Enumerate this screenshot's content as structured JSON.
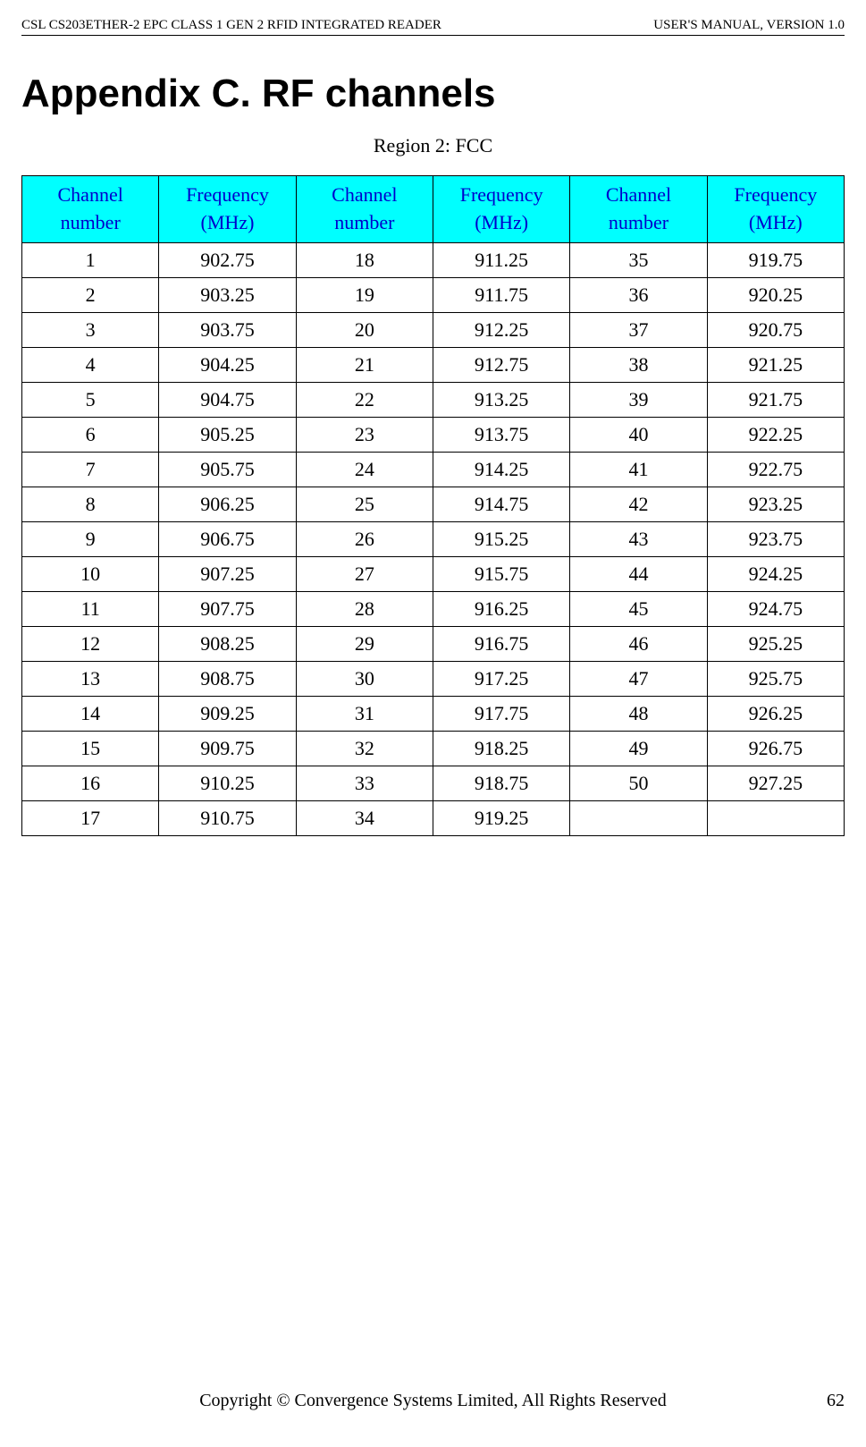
{
  "header": {
    "left": "CSL CS203ETHER-2 EPC CLASS 1 GEN 2 RFID INTEGRATED READER",
    "right": "USER'S  MANUAL,  VERSION  1.0"
  },
  "appendix_title": "Appendix C. RF channels",
  "region_caption": "Region 2: FCC",
  "table": {
    "header_bg_color": "#00ffff",
    "header_text_color": "#0000cc",
    "border_color": "#000000",
    "cell_fontsize": 22,
    "columns": [
      "Channel number",
      "Frequency (MHz)",
      "Channel number",
      "Frequency (MHz)",
      "Channel number",
      "Frequency (MHz)"
    ],
    "rows": [
      [
        "1",
        "902.75",
        "18",
        "911.25",
        "35",
        "919.75"
      ],
      [
        "2",
        "903.25",
        "19",
        "911.75",
        "36",
        "920.25"
      ],
      [
        "3",
        "903.75",
        "20",
        "912.25",
        "37",
        "920.75"
      ],
      [
        "4",
        "904.25",
        "21",
        "912.75",
        "38",
        "921.25"
      ],
      [
        "5",
        "904.75",
        "22",
        "913.25",
        "39",
        "921.75"
      ],
      [
        "6",
        "905.25",
        "23",
        "913.75",
        "40",
        "922.25"
      ],
      [
        "7",
        "905.75",
        "24",
        "914.25",
        "41",
        "922.75"
      ],
      [
        "8",
        "906.25",
        "25",
        "914.75",
        "42",
        "923.25"
      ],
      [
        "9",
        "906.75",
        "26",
        "915.25",
        "43",
        "923.75"
      ],
      [
        "10",
        "907.25",
        "27",
        "915.75",
        "44",
        "924.25"
      ],
      [
        "11",
        "907.75",
        "28",
        "916.25",
        "45",
        "924.75"
      ],
      [
        "12",
        "908.25",
        "29",
        "916.75",
        "46",
        "925.25"
      ],
      [
        "13",
        "908.75",
        "30",
        "917.25",
        "47",
        "925.75"
      ],
      [
        "14",
        "909.25",
        "31",
        "917.75",
        "48",
        "926.25"
      ],
      [
        "15",
        "909.75",
        "32",
        "918.25",
        "49",
        "926.75"
      ],
      [
        "16",
        "910.25",
        "33",
        "918.75",
        "50",
        "927.25"
      ],
      [
        "17",
        "910.75",
        "34",
        "919.25",
        "",
        ""
      ]
    ]
  },
  "footer": {
    "copyright": "Copyright © Convergence Systems Limited, All Rights Reserved",
    "page_number": "62"
  }
}
